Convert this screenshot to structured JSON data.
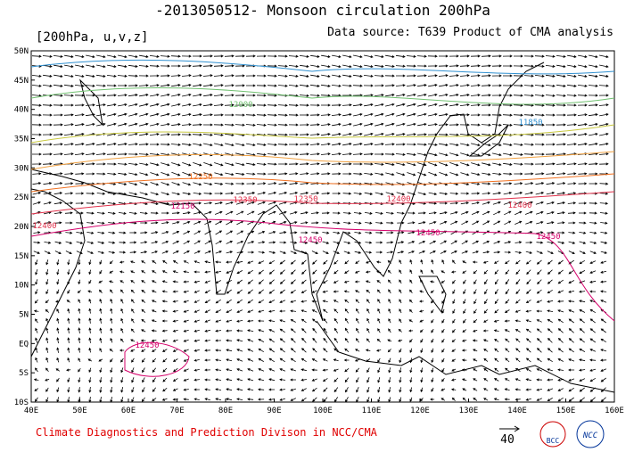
{
  "header": {
    "title": "-2013050512- Monsoon circulation 200hPa",
    "variables": "[200hPa, u,v,z]",
    "data_source": "Data source: T639 Product of CMA analysis"
  },
  "map": {
    "lat_labels": [
      "50N",
      "45N",
      "40N",
      "35N",
      "30N",
      "25N",
      "20N",
      "15N",
      "10N",
      "5N",
      "EQ",
      "5S",
      "10S"
    ],
    "lon_labels": [
      "40E",
      "50E",
      "60E",
      "70E",
      "80E",
      "90E",
      "100E",
      "110E",
      "120E",
      "130E",
      "140E",
      "150E",
      "160E"
    ],
    "contour_labels": [
      "12450",
      "12400",
      "12350",
      "12250",
      "12150",
      "12350",
      "12450",
      "12400",
      "12450",
      "12400",
      "12450",
      "12000",
      "11850"
    ]
  },
  "footer": {
    "credit": "Climate Diagnostics and Prediction Divison in NCC/CMA",
    "reference_vector": "40",
    "logo_left": "BCC",
    "logo_right": "NCC"
  }
}
